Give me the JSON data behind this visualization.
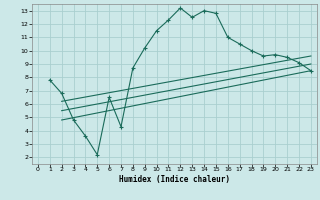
{
  "xlabel": "Humidex (Indice chaleur)",
  "bg_color": "#cce8e8",
  "grid_color": "#aacfcf",
  "line_color": "#1a6b5a",
  "xlim": [
    -0.5,
    23.5
  ],
  "ylim": [
    1.5,
    13.5
  ],
  "xticks": [
    0,
    1,
    2,
    3,
    4,
    5,
    6,
    7,
    8,
    9,
    10,
    11,
    12,
    13,
    14,
    15,
    16,
    17,
    18,
    19,
    20,
    21,
    22,
    23
  ],
  "yticks": [
    2,
    3,
    4,
    5,
    6,
    7,
    8,
    9,
    10,
    11,
    12,
    13
  ],
  "curve_x": [
    1,
    2,
    3,
    4,
    5,
    6,
    7,
    8,
    9,
    10,
    11,
    12,
    13,
    14,
    15,
    16,
    17,
    18,
    19,
    20,
    21,
    22,
    23
  ],
  "curve_y": [
    7.8,
    6.8,
    4.8,
    3.6,
    2.2,
    6.5,
    4.3,
    8.7,
    10.2,
    11.5,
    12.3,
    13.2,
    12.5,
    13.0,
    12.8,
    11.0,
    10.5,
    10.0,
    9.6,
    9.7,
    9.5,
    9.1,
    8.5
  ],
  "line1_x": [
    2,
    23
  ],
  "line1_y": [
    4.8,
    8.5
  ],
  "line2_x": [
    2,
    23
  ],
  "line2_y": [
    5.5,
    9.0
  ],
  "line3_x": [
    2,
    23
  ],
  "line3_y": [
    6.2,
    9.6
  ]
}
